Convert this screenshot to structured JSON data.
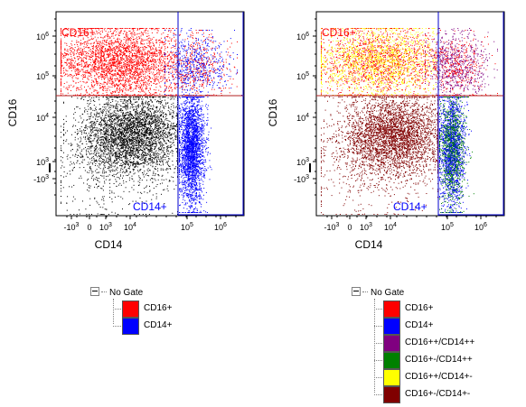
{
  "chart_data": [
    {
      "type": "scatter",
      "title": "",
      "xlabel": "CD14",
      "ylabel": "CD16",
      "x_scale": "biexponential",
      "y_scale": "biexponential",
      "x_ticks": [
        "-10^3",
        "0",
        "10^3",
        "10^4",
        "10^5",
        "10^6"
      ],
      "y_ticks": [
        "10^6",
        "10^5",
        "10^4",
        "10^3",
        "-10^3"
      ],
      "gates": [
        {
          "name": "CD16+",
          "color": "#ff0000",
          "label_position": "top-left"
        },
        {
          "name": "CD14+",
          "color": "#0000ff",
          "label_position": "bottom-right"
        }
      ],
      "series": [
        {
          "name": "CD16+",
          "color": "#ff0000"
        },
        {
          "name": "CD14+",
          "color": "#0000ff"
        },
        {
          "name": "ungated",
          "color": "#000000"
        }
      ]
    },
    {
      "type": "scatter",
      "title": "",
      "xlabel": "CD14",
      "ylabel": "CD16",
      "x_scale": "biexponential",
      "y_scale": "biexponential",
      "x_ticks": [
        "-10^3",
        "0",
        "10^3",
        "10^4",
        "10^5",
        "10^6"
      ],
      "y_ticks": [
        "10^6",
        "10^5",
        "10^4",
        "10^3",
        "-10^3"
      ],
      "gates": [
        {
          "name": "CD16+",
          "color": "#ff0000",
          "label_position": "top-left"
        },
        {
          "name": "CD14+",
          "color": "#0000ff",
          "label_position": "bottom-right"
        }
      ],
      "series": [
        {
          "name": "CD16++/CD14++",
          "color": "#800080"
        },
        {
          "name": "CD16+-/CD14++",
          "color": "#008000"
        },
        {
          "name": "CD16++/CD14+-",
          "color": "#ffff00"
        },
        {
          "name": "CD16+-/CD14+-",
          "color": "#800000"
        }
      ]
    }
  ],
  "legend_left": {
    "root": "No Gate",
    "items": [
      {
        "label": "CD16+",
        "color": "#ff0000"
      },
      {
        "label": "CD14+",
        "color": "#0000ff"
      }
    ]
  },
  "legend_right": {
    "root": "No Gate",
    "items": [
      {
        "label": "CD16+",
        "color": "#ff0000"
      },
      {
        "label": "CD14+",
        "color": "#0000ff"
      },
      {
        "label": "CD16++/CD14++",
        "color": "#800080"
      },
      {
        "label": "CD16+-/CD14++",
        "color": "#008000"
      },
      {
        "label": "CD16++/CD14+-",
        "color": "#ffff00"
      },
      {
        "label": "CD16+-/CD14+-",
        "color": "#800000"
      }
    ]
  },
  "colors": {
    "gate_line": "#b22222",
    "gate_box": "#0000cd",
    "frame": "#000000"
  }
}
